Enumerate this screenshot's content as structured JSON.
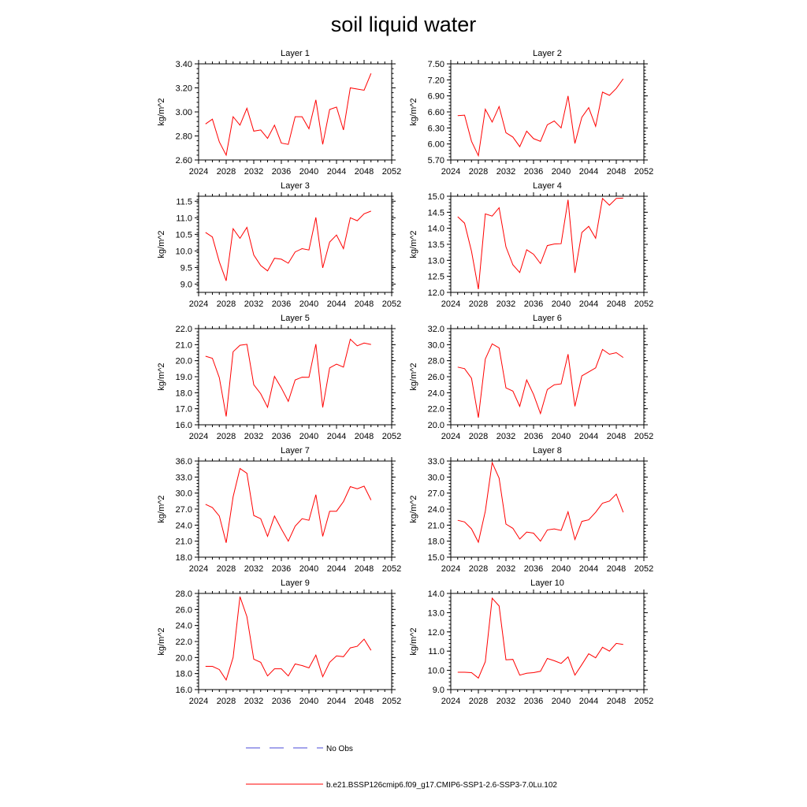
{
  "figure": {
    "title": "soil liquid water"
  },
  "legend": {
    "no_obs_label": "No Obs",
    "no_obs_color": "#4a4ad8",
    "model_label": "b.e21.BSSP126cmip6.f09_g17.CMIP6-SSP1-2.6-SSP3-7.0Lu.102",
    "model_color": "#ff0000"
  },
  "colors": {
    "series": "#ff0000",
    "axis": "#000000",
    "background": "#ffffff"
  },
  "chart_data": [
    {
      "type": "line",
      "title": "Layer 1",
      "xlabel": "",
      "ylabel": "kg/m^2",
      "xlim": [
        2024,
        2052
      ],
      "ylim": [
        2.6,
        3.4
      ],
      "xticks": [
        "2024",
        "2028",
        "2032",
        "2036",
        "2040",
        "2044",
        "2048",
        "2052"
      ],
      "yticks": [
        "2.60",
        "2.80",
        "3.00",
        "3.20",
        "3.40"
      ],
      "grid": false,
      "x": [
        2025,
        2026,
        2027,
        2028,
        2029,
        2030,
        2031,
        2032,
        2033,
        2034,
        2035,
        2036,
        2037,
        2038,
        2039,
        2040,
        2041,
        2042,
        2043,
        2044,
        2045,
        2046,
        2047,
        2048,
        2049
      ],
      "values": [
        2.9,
        2.94,
        2.75,
        2.64,
        2.96,
        2.89,
        3.03,
        2.84,
        2.85,
        2.78,
        2.89,
        2.74,
        2.73,
        2.96,
        2.96,
        2.86,
        3.1,
        2.73,
        3.02,
        3.04,
        2.85,
        3.2,
        3.19,
        3.18,
        3.32
      ]
    },
    {
      "type": "line",
      "title": "Layer 2",
      "xlabel": "",
      "ylabel": "kg/m^2",
      "xlim": [
        2024,
        2052
      ],
      "ylim": [
        5.7,
        7.5
      ],
      "xticks": [
        "2024",
        "2028",
        "2032",
        "2036",
        "2040",
        "2044",
        "2048",
        "2052"
      ],
      "yticks": [
        "5.70",
        "6.00",
        "6.30",
        "6.60",
        "6.90",
        "7.20",
        "7.50"
      ],
      "grid": false,
      "x": [
        2025,
        2026,
        2027,
        2028,
        2029,
        2030,
        2031,
        2032,
        2033,
        2034,
        2035,
        2036,
        2037,
        2038,
        2039,
        2040,
        2041,
        2042,
        2043,
        2044,
        2045,
        2046,
        2047,
        2048,
        2049
      ],
      "values": [
        6.53,
        6.54,
        6.05,
        5.78,
        6.65,
        6.41,
        6.7,
        6.21,
        6.13,
        5.95,
        6.24,
        6.1,
        6.05,
        6.36,
        6.43,
        6.3,
        6.9,
        6.01,
        6.5,
        6.68,
        6.33,
        6.97,
        6.91,
        7.04,
        7.22
      ]
    },
    {
      "type": "line",
      "title": "Layer 3",
      "xlabel": "",
      "ylabel": "kg/m^2",
      "xlim": [
        2024,
        2052
      ],
      "ylim": [
        8.75,
        11.65
      ],
      "xticks": [
        "2024",
        "2028",
        "2032",
        "2036",
        "2040",
        "2044",
        "2048",
        "2052"
      ],
      "yticks": [
        "9.0",
        "9.5",
        "10.0",
        "10.5",
        "11.0",
        "11.5"
      ],
      "grid": false,
      "x": [
        2025,
        2026,
        2027,
        2028,
        2029,
        2030,
        2031,
        2032,
        2033,
        2034,
        2035,
        2036,
        2037,
        2038,
        2039,
        2040,
        2041,
        2042,
        2043,
        2044,
        2045,
        2046,
        2047,
        2048,
        2049
      ],
      "values": [
        10.56,
        10.42,
        9.67,
        9.1,
        10.67,
        10.38,
        10.71,
        9.88,
        9.56,
        9.4,
        9.78,
        9.75,
        9.63,
        9.97,
        10.07,
        10.03,
        11.01,
        9.49,
        10.27,
        10.48,
        10.07,
        11.0,
        10.91,
        11.12,
        11.2
      ]
    },
    {
      "type": "line",
      "title": "Layer 4",
      "xlabel": "",
      "ylabel": "kg/m^2",
      "xlim": [
        2024,
        2052
      ],
      "ylim": [
        12.0,
        15.0
      ],
      "xticks": [
        "2024",
        "2028",
        "2032",
        "2036",
        "2040",
        "2044",
        "2048",
        "2052"
      ],
      "yticks": [
        "12.0",
        "12.5",
        "13.0",
        "13.5",
        "14.0",
        "14.5",
        "15.0"
      ],
      "grid": false,
      "x": [
        2025,
        2026,
        2027,
        2028,
        2029,
        2030,
        2031,
        2032,
        2033,
        2034,
        2035,
        2036,
        2037,
        2038,
        2039,
        2040,
        2041,
        2042,
        2043,
        2044,
        2045,
        2046,
        2047,
        2048,
        2049
      ],
      "values": [
        14.36,
        14.16,
        13.28,
        12.1,
        14.45,
        14.38,
        14.64,
        13.42,
        12.86,
        12.62,
        13.33,
        13.19,
        12.9,
        13.46,
        13.51,
        13.52,
        14.89,
        12.61,
        13.87,
        14.06,
        13.69,
        14.93,
        14.72,
        14.93,
        14.94
      ]
    },
    {
      "type": "line",
      "title": "Layer 5",
      "xlabel": "",
      "ylabel": "kg/m^2",
      "xlim": [
        2024,
        2052
      ],
      "ylim": [
        16.0,
        22.0
      ],
      "xticks": [
        "2024",
        "2028",
        "2032",
        "2036",
        "2040",
        "2044",
        "2048",
        "2052"
      ],
      "yticks": [
        "16.0",
        "17.0",
        "18.0",
        "19.0",
        "20.0",
        "21.0",
        "22.0"
      ],
      "grid": false,
      "x": [
        2025,
        2026,
        2027,
        2028,
        2029,
        2030,
        2031,
        2032,
        2033,
        2034,
        2035,
        2036,
        2037,
        2038,
        2039,
        2040,
        2041,
        2042,
        2043,
        2044,
        2045,
        2046,
        2047,
        2048,
        2049
      ],
      "values": [
        20.28,
        20.15,
        18.94,
        16.52,
        20.56,
        20.96,
        21.02,
        18.5,
        17.94,
        17.09,
        19.02,
        18.3,
        17.46,
        18.8,
        18.97,
        18.96,
        21.03,
        17.08,
        19.55,
        19.78,
        19.6,
        21.34,
        20.93,
        21.1,
        21.01
      ]
    },
    {
      "type": "line",
      "title": "Layer 6",
      "xlabel": "",
      "ylabel": "kg/m^2",
      "xlim": [
        2024,
        2052
      ],
      "ylim": [
        20.0,
        32.0
      ],
      "xticks": [
        "2024",
        "2028",
        "2032",
        "2036",
        "2040",
        "2044",
        "2048",
        "2052"
      ],
      "yticks": [
        "20.0",
        "22.0",
        "24.0",
        "26.0",
        "28.0",
        "30.0",
        "32.0"
      ],
      "grid": false,
      "x": [
        2025,
        2026,
        2027,
        2028,
        2029,
        2030,
        2031,
        2032,
        2033,
        2034,
        2035,
        2036,
        2037,
        2038,
        2039,
        2040,
        2041,
        2042,
        2043,
        2044,
        2045,
        2046,
        2047,
        2048,
        2049
      ],
      "values": [
        27.2,
        27.0,
        25.8,
        20.9,
        28.2,
        30.1,
        29.6,
        24.6,
        24.2,
        22.3,
        25.6,
        23.8,
        21.4,
        24.4,
        25.0,
        25.1,
        28.8,
        22.3,
        26.1,
        26.6,
        27.1,
        29.4,
        28.8,
        29.0,
        28.4
      ]
    },
    {
      "type": "line",
      "title": "Layer 7",
      "xlabel": "",
      "ylabel": "kg/m^2",
      "xlim": [
        2024,
        2052
      ],
      "ylim": [
        18.0,
        36.0
      ],
      "xticks": [
        "2024",
        "2028",
        "2032",
        "2036",
        "2040",
        "2044",
        "2048",
        "2052"
      ],
      "yticks": [
        "18.0",
        "21.0",
        "24.0",
        "27.0",
        "30.0",
        "33.0",
        "36.0"
      ],
      "grid": false,
      "x": [
        2025,
        2026,
        2027,
        2028,
        2029,
        2030,
        2031,
        2032,
        2033,
        2034,
        2035,
        2036,
        2037,
        2038,
        2039,
        2040,
        2041,
        2042,
        2043,
        2044,
        2045,
        2046,
        2047,
        2048,
        2049
      ],
      "values": [
        27.9,
        27.3,
        25.7,
        20.7,
        29.3,
        34.6,
        33.7,
        25.8,
        25.2,
        21.9,
        25.7,
        23.3,
        21.0,
        23.8,
        25.2,
        24.9,
        29.7,
        21.9,
        26.6,
        26.6,
        28.4,
        31.2,
        30.8,
        31.3,
        28.7
      ]
    },
    {
      "type": "line",
      "title": "Layer 8",
      "xlabel": "",
      "ylabel": "kg/m^2",
      "xlim": [
        2024,
        2052
      ],
      "ylim": [
        15.0,
        33.0
      ],
      "xticks": [
        "2024",
        "2028",
        "2032",
        "2036",
        "2040",
        "2044",
        "2048",
        "2052"
      ],
      "yticks": [
        "15.0",
        "18.0",
        "21.0",
        "24.0",
        "27.0",
        "30.0",
        "33.0"
      ],
      "grid": false,
      "x": [
        2025,
        2026,
        2027,
        2028,
        2029,
        2030,
        2031,
        2032,
        2033,
        2034,
        2035,
        2036,
        2037,
        2038,
        2039,
        2040,
        2041,
        2042,
        2043,
        2044,
        2045,
        2046,
        2047,
        2048,
        2049
      ],
      "values": [
        21.9,
        21.6,
        20.3,
        17.8,
        23.6,
        32.7,
        29.8,
        21.2,
        20.4,
        18.4,
        19.7,
        19.5,
        18.0,
        20.1,
        20.3,
        20.0,
        23.5,
        18.3,
        21.7,
        22.0,
        23.4,
        25.1,
        25.5,
        26.8,
        23.4
      ]
    },
    {
      "type": "line",
      "title": "Layer 9",
      "xlabel": "",
      "ylabel": "kg/m^2",
      "xlim": [
        2024,
        2052
      ],
      "ylim": [
        16.0,
        28.0
      ],
      "xticks": [
        "2024",
        "2028",
        "2032",
        "2036",
        "2040",
        "2044",
        "2048",
        "2052"
      ],
      "yticks": [
        "16.0",
        "18.0",
        "20.0",
        "22.0",
        "24.0",
        "26.0",
        "28.0"
      ],
      "grid": false,
      "x": [
        2025,
        2026,
        2027,
        2028,
        2029,
        2030,
        2031,
        2032,
        2033,
        2034,
        2035,
        2036,
        2037,
        2038,
        2039,
        2040,
        2041,
        2042,
        2043,
        2044,
        2045,
        2046,
        2047,
        2048,
        2049
      ],
      "values": [
        18.9,
        18.9,
        18.5,
        17.2,
        20.0,
        27.6,
        25.1,
        19.8,
        19.4,
        17.7,
        18.6,
        18.6,
        17.7,
        19.2,
        19.0,
        18.7,
        20.3,
        17.6,
        19.4,
        20.2,
        20.1,
        21.2,
        21.4,
        22.3,
        20.9
      ]
    },
    {
      "type": "line",
      "title": "Layer 10",
      "xlabel": "",
      "ylabel": "kg/m^2",
      "xlim": [
        2024,
        2052
      ],
      "ylim": [
        9.0,
        14.0
      ],
      "xticks": [
        "2024",
        "2028",
        "2032",
        "2036",
        "2040",
        "2044",
        "2048",
        "2052"
      ],
      "yticks": [
        "9.0",
        "10.0",
        "11.0",
        "12.0",
        "13.0",
        "14.0"
      ],
      "grid": false,
      "x": [
        2025,
        2026,
        2027,
        2028,
        2029,
        2030,
        2031,
        2032,
        2033,
        2034,
        2035,
        2036,
        2037,
        2038,
        2039,
        2040,
        2041,
        2042,
        2043,
        2044,
        2045,
        2046,
        2047,
        2048,
        2049
      ],
      "values": [
        9.9,
        9.9,
        9.88,
        9.6,
        10.45,
        13.75,
        13.35,
        10.55,
        10.57,
        9.75,
        9.85,
        9.88,
        9.95,
        10.62,
        10.5,
        10.36,
        10.7,
        9.75,
        10.3,
        10.86,
        10.65,
        11.2,
        11.0,
        11.4,
        11.35
      ]
    }
  ]
}
